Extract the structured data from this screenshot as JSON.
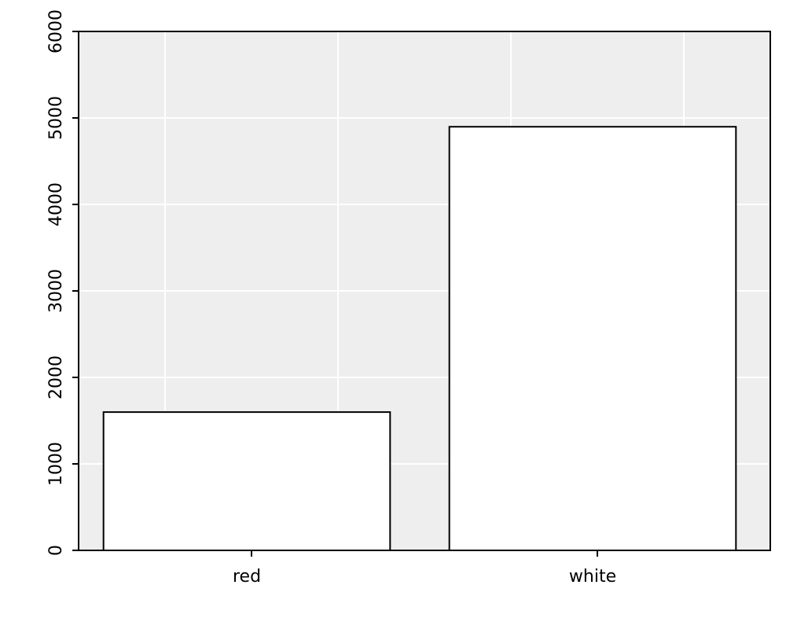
{
  "chart_data": {
    "type": "bar",
    "title": "",
    "xlabel": "",
    "ylabel": "",
    "categories": [
      "red",
      "white"
    ],
    "values": [
      1599,
      4898
    ],
    "ylim": [
      0,
      6000
    ],
    "yticks": [
      0,
      1000,
      2000,
      3000,
      4000,
      5000,
      6000
    ],
    "grid": true,
    "legend": "none",
    "colors": {
      "panel_background": "#eeeeee",
      "grid": "#ffffff",
      "bar_fill": "#ffffff",
      "bar_stroke": "#000000",
      "axis": "#000000"
    }
  }
}
